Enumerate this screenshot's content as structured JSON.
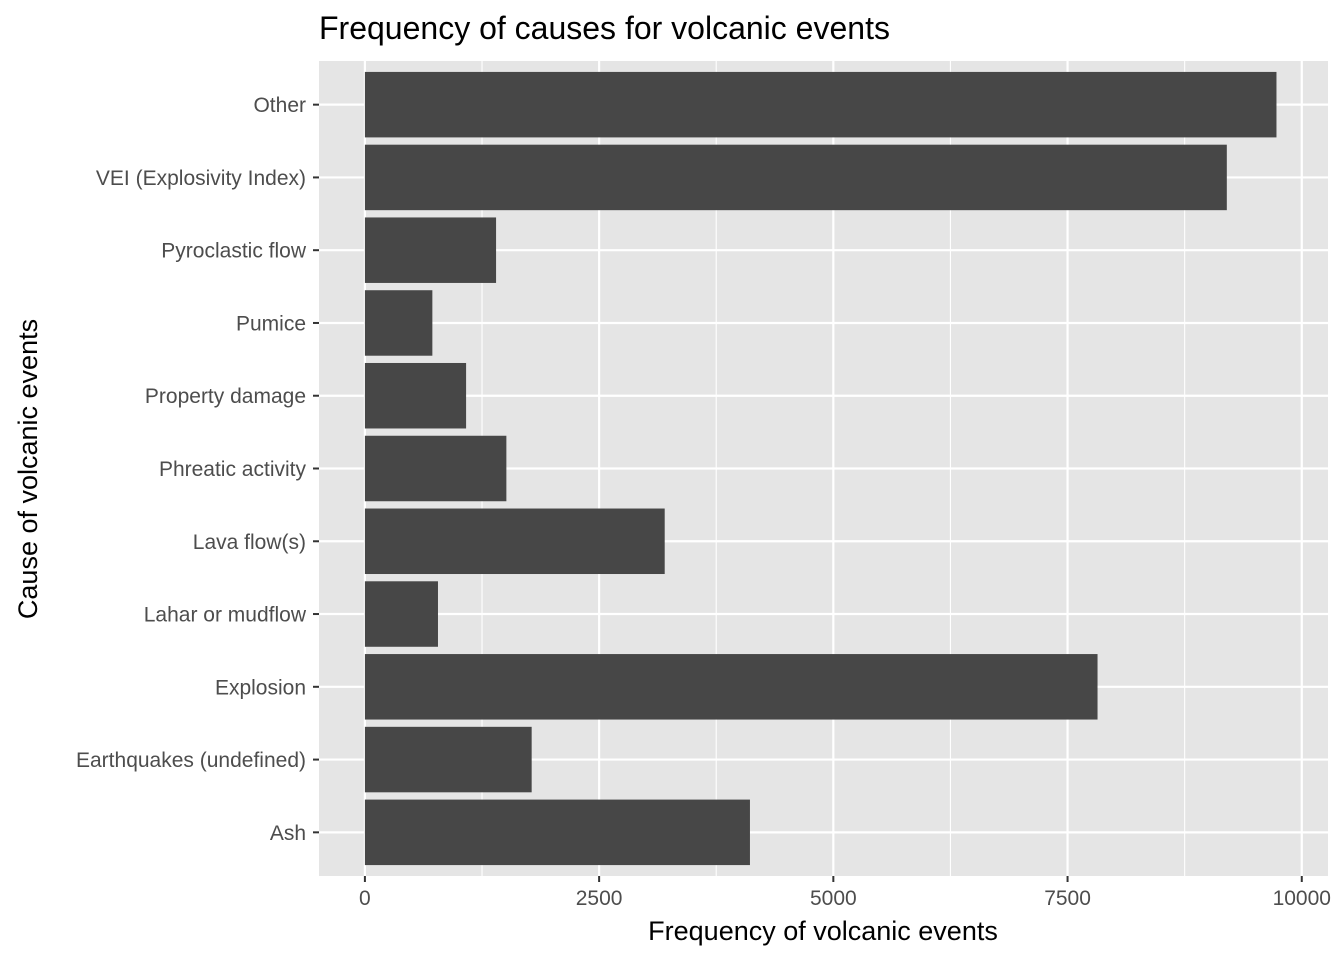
{
  "chart_data": {
    "type": "bar",
    "orientation": "horizontal",
    "title": "Frequency of causes for volcanic events",
    "xlabel": "Frequency of volcanic events",
    "ylabel": "Cause of volcanic events",
    "categories": [
      "Ash",
      "Earthquakes (undefined)",
      "Explosion",
      "Lahar or mudflow",
      "Lava flow(s)",
      "Phreatic activity",
      "Property damage",
      "Pumice",
      "Pyroclastic flow",
      "VEI (Explosivity Index)",
      "Other"
    ],
    "values": [
      4110,
      1780,
      7820,
      780,
      3200,
      1510,
      1080,
      720,
      1400,
      9200,
      9730
    ],
    "xlim": [
      -490,
      10280
    ],
    "x_ticks": [
      0,
      2500,
      5000,
      7500,
      10000
    ],
    "x_tick_labels": [
      "0",
      "2500",
      "5000",
      "7500",
      "10000"
    ],
    "grid": true,
    "legend": "none",
    "colors": {
      "bar": "#474747",
      "panel_background": "#e5e5e5",
      "grid": "#ffffff",
      "tick_text": "#4d4d4d",
      "tick_mark": "#333333"
    }
  }
}
